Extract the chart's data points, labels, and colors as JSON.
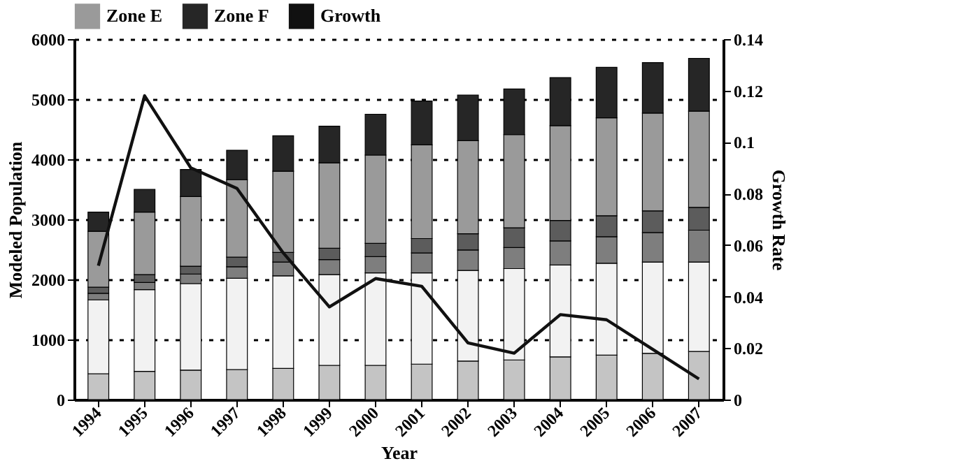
{
  "chart_data": {
    "type": "bar",
    "stacked": true,
    "xlabel": "Year",
    "ylabel": "Modeled Population",
    "y2label": "Growth Rate",
    "categories": [
      "1994",
      "1995",
      "1996",
      "1997",
      "1998",
      "1999",
      "2000",
      "2001",
      "2002",
      "2003",
      "2004",
      "2005",
      "2006",
      "2007"
    ],
    "ylim": [
      0,
      6000
    ],
    "yticks": [
      0,
      1000,
      2000,
      3000,
      4000,
      5000,
      6000
    ],
    "y2lim": [
      0,
      0.14
    ],
    "y2ticks": [
      0,
      0.02,
      0.04,
      0.06,
      0.08,
      0.1,
      0.12,
      0.14
    ],
    "grid": "y",
    "legend": "top",
    "series": [
      {
        "color": "#c4c4c4",
        "values": [
          430,
          470,
          490,
          500,
          520,
          570,
          570,
          590,
          640,
          660,
          710,
          740,
          770,
          800
        ]
      },
      {
        "color": "#f2f2f2",
        "values": [
          1230,
          1360,
          1440,
          1520,
          1540,
          1510,
          1540,
          1520,
          1510,
          1520,
          1530,
          1530,
          1520,
          1490
        ]
      },
      {
        "color": "#7e7e7e",
        "values": [
          110,
          120,
          160,
          190,
          230,
          250,
          270,
          330,
          340,
          350,
          400,
          440,
          490,
          530
        ]
      },
      {
        "color": "#5c5c5c",
        "values": [
          100,
          130,
          130,
          160,
          160,
          190,
          220,
          240,
          270,
          330,
          340,
          350,
          360,
          380
        ]
      },
      {
        "name": "Zone E",
        "color": "#9a9a9a",
        "values": [
          930,
          1040,
          1160,
          1290,
          1350,
          1420,
          1470,
          1560,
          1550,
          1550,
          1580,
          1630,
          1630,
          1600
        ]
      },
      {
        "name": "Zone F",
        "color": "#262626",
        "values": [
          320,
          380,
          450,
          490,
          590,
          610,
          680,
          730,
          760,
          760,
          800,
          840,
          840,
          880
        ]
      },
      {
        "name": "Growth",
        "type": "line",
        "axis": "y2",
        "color": "#111111",
        "values": [
          0.052,
          0.118,
          0.09,
          0.082,
          0.057,
          0.036,
          0.047,
          0.044,
          0.022,
          0.018,
          0.033,
          0.031,
          0.0195,
          0.008
        ]
      }
    ]
  }
}
